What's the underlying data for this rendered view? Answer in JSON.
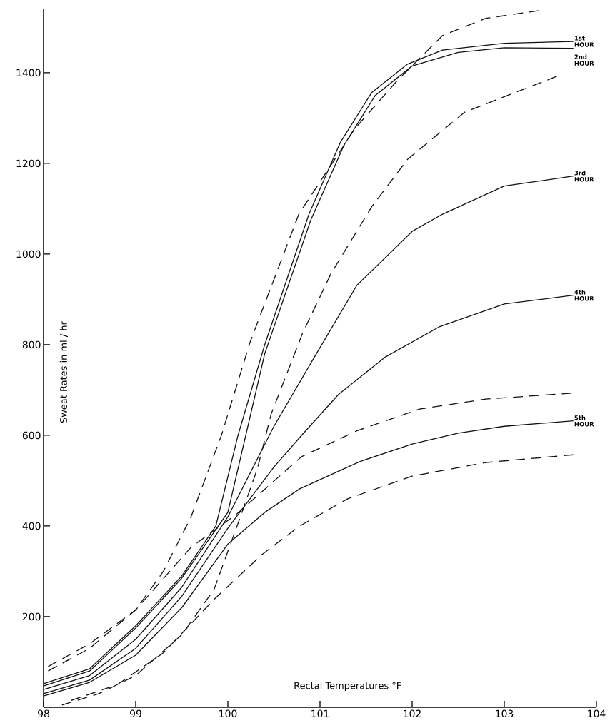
{
  "chart_data": {
    "type": "line",
    "xlabel": "Rectal Temperatures °F",
    "ylabel": "Sweat Rates in ml / hr",
    "xlim": [
      98,
      104
    ],
    "ylim": [
      0,
      1540
    ],
    "xticks": [
      98,
      99,
      100,
      101,
      102,
      103,
      104
    ],
    "yticks": [
      200,
      400,
      600,
      800,
      1000,
      1200,
      1400
    ],
    "grid": false,
    "legend": false,
    "marker": "none",
    "series": [
      {
        "name": "1st HOUR",
        "color": "#111111",
        "line_style": "solid",
        "x": [
          98,
          98.5,
          99,
          99.5,
          99.87,
          100.11,
          100.4,
          100.88,
          101.22,
          101.56,
          101.95,
          102.33,
          103,
          103.75
        ],
        "values": [
          52,
          85,
          180,
          290,
          400,
          600,
          800,
          1088,
          1246,
          1356,
          1419,
          1450,
          1465,
          1469
        ]
      },
      {
        "name": "2nd HOUR",
        "color": "#111111",
        "line_style": "solid",
        "x": [
          98,
          98.5,
          99,
          99.5,
          100,
          100.4,
          100.9,
          101.26,
          101.6,
          102,
          102.5,
          103,
          103.75
        ],
        "values": [
          47,
          80,
          175,
          285,
          430,
          780,
          1075,
          1240,
          1350,
          1415,
          1445,
          1455,
          1454
        ]
      },
      {
        "name": "3rd HOUR",
        "color": "#111111",
        "line_style": "solid",
        "x": [
          98,
          98.5,
          99,
          99.5,
          100,
          100.5,
          100.94,
          101.4,
          102,
          102.33,
          103,
          103.75
        ],
        "values": [
          39,
          70,
          150,
          265,
          420,
          620,
          773,
          931,
          1050,
          1088,
          1150,
          1172
        ]
      },
      {
        "name": "4th HOUR",
        "color": "#111111",
        "line_style": "solid",
        "x": [
          98,
          98.5,
          99,
          99.5,
          100,
          100.5,
          100.8,
          101.2,
          101.71,
          102.3,
          103,
          103.75
        ],
        "values": [
          30,
          60,
          130,
          245,
          395,
          530,
          600,
          690,
          773,
          840,
          890,
          909
        ]
      },
      {
        "name": "5th HOUR",
        "color": "#111111",
        "line_style": "solid",
        "x": [
          98,
          98.5,
          99,
          99.5,
          100,
          100.4,
          100.78,
          101.43,
          102,
          102.5,
          103,
          103.75
        ],
        "values": [
          25,
          55,
          115,
          220,
          360,
          430,
          482,
          542,
          581,
          605,
          620,
          632
        ]
      },
      {
        "color": "#111111",
        "line_style": "dashed",
        "x": [
          98.05,
          98.5,
          99,
          99.3,
          99.6,
          99.93,
          100.24,
          100.77,
          101.38,
          101.84,
          102.33,
          102.8,
          103.38
        ],
        "values": [
          80,
          130,
          215,
          300,
          420,
          600,
          805,
          1088,
          1277,
          1383,
          1482,
          1520,
          1537
        ]
      },
      {
        "color": "#111111",
        "line_style": "dashed",
        "x": [
          98.2,
          98.6,
          99,
          99.5,
          99.85,
          100.1,
          100.32,
          100.47,
          100.81,
          101.12,
          101.56,
          101.95,
          102.57,
          103.57
        ],
        "values": [
          5,
          30,
          70,
          160,
          260,
          400,
          526,
          647,
          825,
          957,
          1104,
          1209,
          1313,
          1392
        ]
      },
      {
        "color": "#111111",
        "line_style": "dashed",
        "x": [
          98.05,
          98.5,
          99,
          99.6,
          100.1,
          100.8,
          101.4,
          102.08,
          102.8,
          103.73
        ],
        "values": [
          90,
          140,
          215,
          353,
          427,
          553,
          610,
          658,
          680,
          693
        ]
      },
      {
        "color": "#111111",
        "line_style": "dashed",
        "x": [
          98.3,
          98.8,
          99.3,
          99.85,
          100.37,
          100.78,
          101.3,
          102,
          102.8,
          103.75
        ],
        "values": [
          15,
          50,
          120,
          238,
          337,
          400,
          460,
          510,
          540,
          557
        ]
      }
    ]
  }
}
